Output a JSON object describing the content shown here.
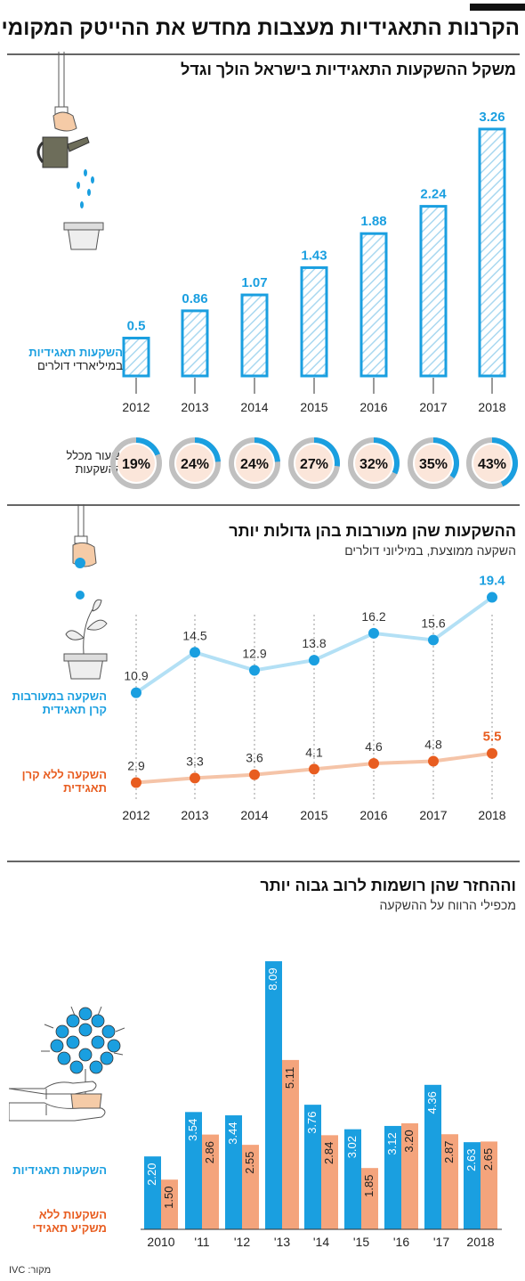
{
  "title": "הקרנות התאגידיות מעצבות מחדש את ההייטק המקומי",
  "source": "מקור: IVC",
  "colors": {
    "blue": "#1a9fe0",
    "light_blue": "#b3e0f5",
    "orange": "#e85d20",
    "light_orange": "#f5c4a8",
    "salmon": "#f4a47c",
    "gray": "#c0c0c0",
    "pink_fill": "#fbe6da"
  },
  "section1": {
    "title": "משקל ההשקעות התאגידיות בישראל הולך וגדל",
    "legend_blue": "השקעות תאגידיות",
    "legend_rest": "במיליארדי דולרים",
    "share_label": "שיעור מכלל ההשקעות"
  },
  "section2": {
    "title": "ההשקעות שהן מעורבות בהן גדולות יותר",
    "subtitle": "השקעה ממוצעת, במיליוני דולרים",
    "legend_blue": "השקעה במעורבות קרן תאגידית",
    "legend_orange": "השקעה ללא קרן תאגידית"
  },
  "section3": {
    "title": "וההחזר שהן רושמות לרוב גבוה יותר",
    "subtitle": "מכפילי הרווח על ההשקעה",
    "legend_blue": "השקעות תאגידיות",
    "legend_orange": "השקעות ללא משקיע תאגידי"
  },
  "chart_data": [
    {
      "type": "bar",
      "title": "משקל ההשקעות התאגידיות בישראל הולך וגדל",
      "categories": [
        "2012",
        "2013",
        "2014",
        "2015",
        "2016",
        "2017",
        "2018"
      ],
      "values": [
        0.5,
        0.86,
        1.07,
        1.43,
        1.88,
        2.24,
        3.26
      ],
      "value_labels": [
        "0.5",
        "0.86",
        "1.07",
        "1.43",
        "1.88",
        "2.24",
        "3.26"
      ],
      "ylabel": "השקעות תאגידיות במיליארדי דולרים",
      "share_percent": [
        19,
        24,
        24,
        27,
        32,
        35,
        43
      ],
      "share_labels": [
        "19%",
        "24%",
        "24%",
        "27%",
        "32%",
        "35%",
        "43%"
      ],
      "share_label": "שיעור מכלל ההשקעות",
      "grid": false
    },
    {
      "type": "line",
      "title": "ההשקעות שהן מעורבות בהן גדולות יותר",
      "subtitle": "השקעה ממוצעת, במיליוני דולרים",
      "categories": [
        "2012",
        "2013",
        "2014",
        "2015",
        "2016",
        "2017",
        "2018"
      ],
      "series": [
        {
          "name": "השקעה במעורבות קרן תאגידית",
          "values": [
            10.9,
            14.5,
            12.9,
            13.8,
            16.2,
            15.6,
            19.4
          ],
          "labels": [
            "10.9",
            "14.5",
            "12.9",
            "13.8",
            "16.2",
            "15.6",
            "19.4"
          ]
        },
        {
          "name": "השקעה ללא קרן תאגידית",
          "values": [
            2.9,
            3.3,
            3.6,
            4.1,
            4.6,
            4.8,
            5.5
          ],
          "labels": [
            "2.9",
            "3.3",
            "3.6",
            "4.1",
            "4.6",
            "4.8",
            "5.5"
          ]
        }
      ],
      "grid": false
    },
    {
      "type": "bar",
      "title": "וההחזר שהן רושמות לרוב גבוה יותר",
      "subtitle": "מכפילי הרווח על ההשקעה",
      "categories": [
        "2010",
        "'11",
        "'12",
        "'13",
        "'14",
        "'15",
        "'16",
        "'17",
        "2018"
      ],
      "series": [
        {
          "name": "השקעות תאגידיות",
          "values": [
            2.2,
            3.54,
            3.44,
            8.09,
            3.76,
            3.02,
            3.12,
            4.36,
            2.63
          ],
          "labels": [
            "2.20",
            "3.54",
            "3.44",
            "8.09",
            "3.76",
            "3.02",
            "3.12",
            "4.36",
            "2.63"
          ]
        },
        {
          "name": "השקעות ללא משקיע תאגידי",
          "values": [
            1.5,
            2.86,
            2.55,
            5.11,
            2.84,
            1.85,
            3.2,
            2.87,
            2.65
          ],
          "labels": [
            "1.50",
            "2.86",
            "2.55",
            "5.11",
            "2.84",
            "1.85",
            "3.20",
            "2.87",
            "2.65"
          ]
        }
      ],
      "grid": false
    }
  ]
}
